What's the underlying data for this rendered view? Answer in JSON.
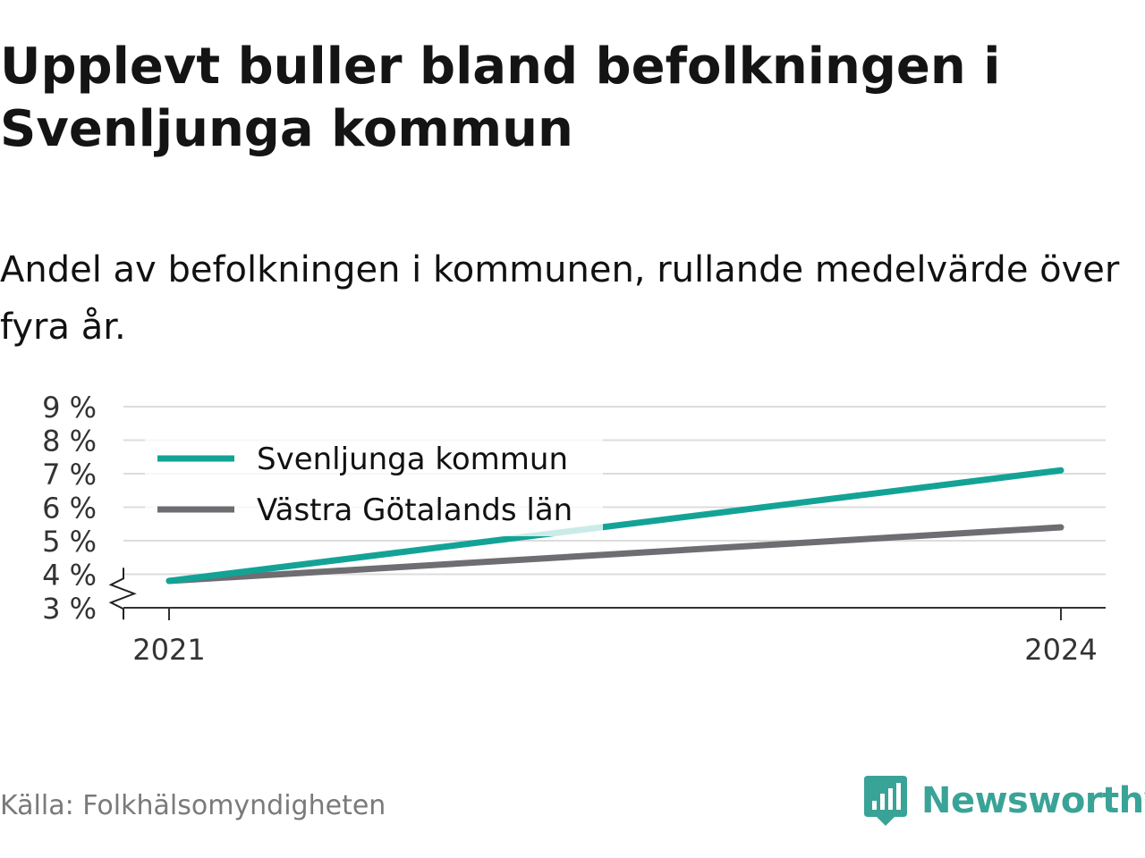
{
  "title": "Upplevt buller bland befolkningen i Svenljunga kommun",
  "subtitle": "Andel av befolkningen i kommunen, rullande medelvärde över fyra år.",
  "source": "Källa: Folkhälsomyndigheten",
  "brand": {
    "name": "Newsworthy",
    "icon": "newsworthy-logo-icon",
    "color": "#3aa397"
  },
  "chart_data": {
    "type": "line",
    "x": [
      "2021",
      "2024"
    ],
    "x_ticks": [
      "2021",
      "2024"
    ],
    "y_ticks": [
      "3 %",
      "4 %",
      "5 %",
      "6 %",
      "7 %",
      "8 %",
      "9 %"
    ],
    "ylim": [
      3,
      9
    ],
    "y_axis_break": true,
    "grid": true,
    "legend_position": "top-left",
    "series": [
      {
        "name": "Svenljunga kommun",
        "values": [
          3.8,
          7.1
        ],
        "color": "#13a396"
      },
      {
        "name": "Västra Götalands län",
        "values": [
          3.8,
          5.4
        ],
        "color": "#6e6d72"
      }
    ]
  }
}
